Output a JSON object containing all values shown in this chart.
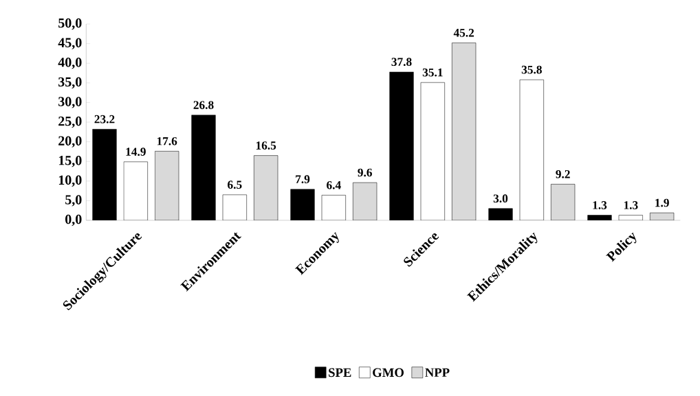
{
  "chart_data": {
    "type": "bar",
    "categories": [
      "Sociology/Culture",
      "Environment",
      "Economy",
      "Science",
      "Ethics/Morality",
      "Policy"
    ],
    "series": [
      {
        "name": "SPE",
        "color": "#000000",
        "values": [
          23.2,
          26.8,
          7.9,
          37.8,
          3.0,
          1.3
        ],
        "value_labels": [
          "23.2",
          "26.8",
          "7.9",
          "37.8",
          "3.0",
          "1.3"
        ]
      },
      {
        "name": "GMO",
        "color": "#ffffff",
        "values": [
          14.9,
          6.5,
          6.4,
          35.1,
          35.8,
          1.3
        ],
        "value_labels": [
          "14.9",
          "6.5",
          "6.4",
          "35.1",
          "35.8",
          "1.3"
        ]
      },
      {
        "name": "NPP",
        "color": "#d9d9d9",
        "values": [
          17.6,
          16.5,
          9.6,
          45.2,
          9.2,
          1.9
        ],
        "value_labels": [
          "17.6",
          "16.5",
          "9.6",
          "45.2",
          "9.2",
          "1.9"
        ]
      }
    ],
    "ylim": [
      0,
      50
    ],
    "yticks": [
      {
        "value": 0,
        "label": "0,0"
      },
      {
        "value": 5,
        "label": "5,0"
      },
      {
        "value": 10,
        "label": "10,0"
      },
      {
        "value": 15,
        "label": "15,0"
      },
      {
        "value": 20,
        "label": "20,0"
      },
      {
        "value": 25,
        "label": "25,0"
      },
      {
        "value": 30,
        "label": "30,0"
      },
      {
        "value": 35,
        "label": "35,0"
      },
      {
        "value": 40,
        "label": "40,0"
      },
      {
        "value": 45,
        "label": "45,0"
      },
      {
        "value": 50,
        "label": "50,0"
      }
    ],
    "legend": "bottom",
    "grid": false
  }
}
